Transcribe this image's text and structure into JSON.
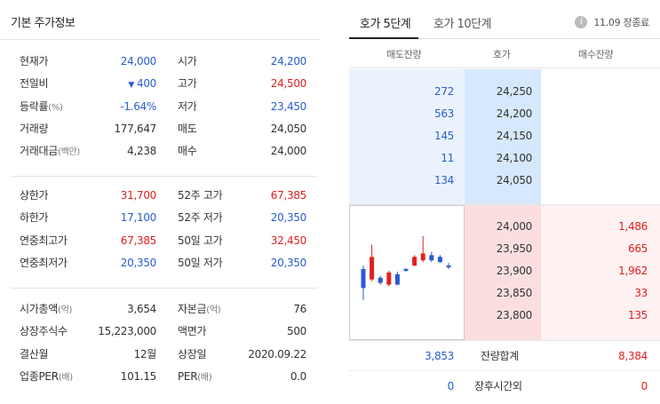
{
  "left": {
    "title": "기본 주가정보",
    "group1": [
      {
        "l1": "현재가",
        "u1": "",
        "v1": "24,000",
        "c1": "blue",
        "l2": "시가",
        "u2": "",
        "v2": "24,200",
        "c2": "blue"
      },
      {
        "l1": "전일비",
        "u1": "",
        "v1": "400",
        "c1": "blue",
        "tri": "▼",
        "l2": "고가",
        "u2": "",
        "v2": "24,500",
        "c2": "red"
      },
      {
        "l1": "등락률",
        "u1": "(%)",
        "v1": "-1.64%",
        "c1": "blue",
        "l2": "저가",
        "u2": "",
        "v2": "23,450",
        "c2": "blue"
      },
      {
        "l1": "거래량",
        "u1": "",
        "v1": "177,647",
        "c1": "dark",
        "l2": "매도",
        "u2": "",
        "v2": "24,050",
        "c2": "dark"
      },
      {
        "l1": "거래대금",
        "u1": "(백만)",
        "v1": "4,238",
        "c1": "dark",
        "l2": "매수",
        "u2": "",
        "v2": "24,000",
        "c2": "dark"
      }
    ],
    "group2": [
      {
        "l1": "상한가",
        "u1": "",
        "v1": "31,700",
        "c1": "red",
        "l2": "52주 고가",
        "u2": "",
        "v2": "67,385",
        "c2": "red"
      },
      {
        "l1": "하한가",
        "u1": "",
        "v1": "17,100",
        "c1": "blue",
        "l2": "52주 저가",
        "u2": "",
        "v2": "20,350",
        "c2": "blue"
      },
      {
        "l1": "연중최고가",
        "u1": "",
        "v1": "67,385",
        "c1": "red",
        "l2": "50일 고가",
        "u2": "",
        "v2": "32,450",
        "c2": "red"
      },
      {
        "l1": "연중최저가",
        "u1": "",
        "v1": "20,350",
        "c1": "blue",
        "l2": "50일 저가",
        "u2": "",
        "v2": "20,350",
        "c2": "blue"
      }
    ],
    "group3": [
      {
        "l1": "시가총액",
        "u1": "(억)",
        "v1": "3,654",
        "c1": "dark",
        "l2": "자본금",
        "u2": "(억)",
        "v2": "76",
        "c2": "dark"
      },
      {
        "l1": "상장주식수",
        "u1": "",
        "v1": "15,223,000",
        "c1": "dark",
        "l2": "액면가",
        "u2": "",
        "v2": "500",
        "c2": "dark"
      },
      {
        "l1": "결산월",
        "u1": "",
        "v1": "12월",
        "c1": "dark",
        "l2": "상장일",
        "u2": "",
        "v2": "2020.09.22",
        "c2": "dark"
      },
      {
        "l1": "업종PER",
        "u1": "(배)",
        "v1": "101.15",
        "c1": "dark",
        "l2": "PER",
        "u2": "(배)",
        "v2": "0.0",
        "c2": "dark"
      }
    ]
  },
  "right": {
    "tabs": [
      {
        "label": "호가 5단계",
        "active": true
      },
      {
        "label": "호가 10단계",
        "active": false
      }
    ],
    "status_icon": "info-icon",
    "status_glyph": "i",
    "status_text": "11.09 장종료",
    "headers": {
      "sell": "매도잔량",
      "price": "호가",
      "buy": "매수잔량"
    },
    "asks": [
      {
        "qty": "272",
        "price": "24,250"
      },
      {
        "qty": "563",
        "price": "24,200"
      },
      {
        "qty": "145",
        "price": "24,150"
      },
      {
        "qty": "11",
        "price": "24,100"
      },
      {
        "qty": "134",
        "price": "24,050"
      }
    ],
    "bids": [
      {
        "price": "24,000",
        "qty": "1,486"
      },
      {
        "price": "23,950",
        "qty": "665"
      },
      {
        "price": "23,900",
        "qty": "1,962"
      },
      {
        "price": "23,850",
        "qty": "33"
      },
      {
        "price": "23,800",
        "qty": "135"
      }
    ],
    "totals": {
      "sell": "3,853",
      "label": "잔량합계",
      "buy": "8,384"
    },
    "after_hours": {
      "sell": "0",
      "label": "장후시간외",
      "buy": "0"
    },
    "mini_chart": [
      {
        "open": 24040,
        "close": 23930,
        "high": 24060,
        "low": 23860,
        "dir": "down"
      },
      {
        "open": 23980,
        "close": 24110,
        "high": 24180,
        "low": 23970,
        "dir": "up"
      },
      {
        "open": 23990,
        "close": 23960,
        "high": 24000,
        "low": 23950,
        "dir": "down"
      },
      {
        "open": 23950,
        "close": 24020,
        "high": 24030,
        "low": 23940,
        "dir": "up"
      },
      {
        "open": 23950,
        "close": 24010,
        "high": 24025,
        "low": 23945,
        "dir": "down"
      },
      {
        "open": 24030,
        "close": 24040,
        "high": 24045,
        "low": 24025,
        "dir": "down"
      },
      {
        "open": 24060,
        "close": 24110,
        "high": 24120,
        "low": 24055,
        "dir": "up"
      },
      {
        "open": 24090,
        "close": 24130,
        "high": 24230,
        "low": 24080,
        "dir": "up"
      },
      {
        "open": 24120,
        "close": 24090,
        "high": 24140,
        "low": 24080,
        "dir": "down"
      },
      {
        "open": 24080,
        "close": 24110,
        "high": 24120,
        "low": 24075,
        "dir": "down"
      },
      {
        "open": 24060,
        "close": 24050,
        "high": 24075,
        "low": 24040,
        "dir": "down"
      }
    ],
    "mini_chart_range": [
      23840,
      24250
    ],
    "colors": {
      "up": "#e02020",
      "down": "#2a5bd4"
    }
  }
}
